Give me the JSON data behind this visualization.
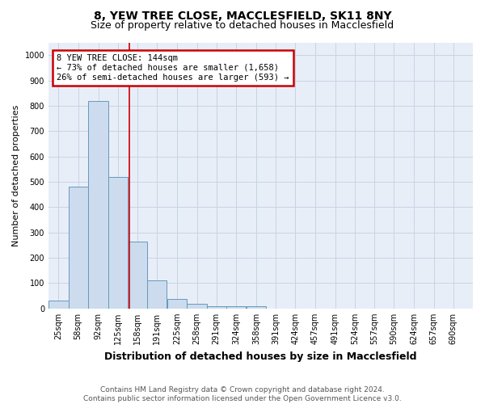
{
  "title1": "8, YEW TREE CLOSE, MACCLESFIELD, SK11 8NY",
  "title2": "Size of property relative to detached houses in Macclesfield",
  "xlabel": "Distribution of detached houses by size in Macclesfield",
  "ylabel": "Number of detached properties",
  "bin_labels": [
    "25sqm",
    "58sqm",
    "92sqm",
    "125sqm",
    "158sqm",
    "191sqm",
    "225sqm",
    "258sqm",
    "291sqm",
    "324sqm",
    "358sqm",
    "391sqm",
    "424sqm",
    "457sqm",
    "491sqm",
    "524sqm",
    "557sqm",
    "590sqm",
    "624sqm",
    "657sqm",
    "690sqm"
  ],
  "bin_centers": [
    25,
    58,
    92,
    125,
    158,
    191,
    225,
    258,
    291,
    324,
    358,
    391,
    424,
    457,
    491,
    524,
    557,
    590,
    624,
    657,
    690
  ],
  "bar_heights": [
    30,
    480,
    820,
    520,
    265,
    110,
    38,
    20,
    10,
    8,
    8,
    0,
    0,
    0,
    0,
    0,
    0,
    0,
    0,
    0,
    0
  ],
  "bar_color": "#ccdcee",
  "bar_edge_color": "#6699bb",
  "property_size": 144,
  "vline_color": "#cc0000",
  "annotation_text": "8 YEW TREE CLOSE: 144sqm\n← 73% of detached houses are smaller (1,658)\n26% of semi-detached houses are larger (593) →",
  "annotation_box_edgecolor": "#cc0000",
  "annotation_bg": "#ffffff",
  "ylim": [
    0,
    1050
  ],
  "yticks": [
    0,
    100,
    200,
    300,
    400,
    500,
    600,
    700,
    800,
    900,
    1000
  ],
  "xlim_min": 8,
  "xlim_max": 723,
  "grid_color": "#c8d4e4",
  "background_color": "#e8eef8",
  "footer": "Contains HM Land Registry data © Crown copyright and database right 2024.\nContains public sector information licensed under the Open Government Licence v3.0.",
  "title1_fontsize": 10,
  "title2_fontsize": 9,
  "xlabel_fontsize": 9,
  "ylabel_fontsize": 8,
  "tick_fontsize": 7,
  "annotation_fontsize": 7.5,
  "footer_fontsize": 6.5
}
